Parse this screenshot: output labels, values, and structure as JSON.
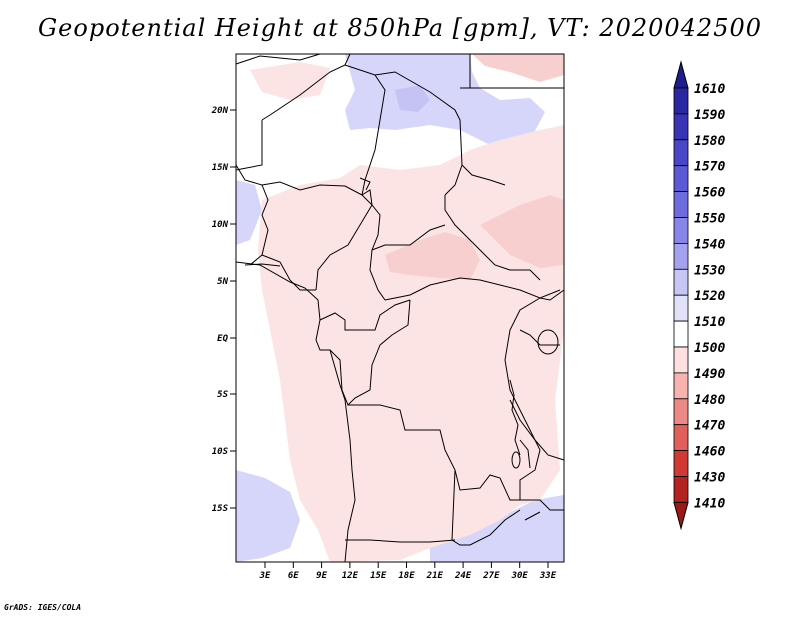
{
  "title": "Geopotential Height at 850hPa [gpm], VT: 2020042500",
  "credit": "GrADS: IGES/COLA",
  "lat_ticks": [
    "20N",
    "15N",
    "10N",
    "5N",
    "EQ",
    "5S",
    "10S",
    "15S"
  ],
  "lon_ticks": [
    "3E",
    "6E",
    "9E",
    "12E",
    "15E",
    "18E",
    "21E",
    "24E",
    "27E",
    "30E",
    "33E"
  ],
  "colorbar": {
    "labels": [
      "1610",
      "1590",
      "1580",
      "1570",
      "1560",
      "1550",
      "1540",
      "1530",
      "1520",
      "1510",
      "1500",
      "1490",
      "1480",
      "1470",
      "1460",
      "1430",
      "1410"
    ],
    "colors": [
      "#1f1c8f",
      "#2b27a3",
      "#3934b5",
      "#4a46c7",
      "#5c59d6",
      "#6f6ce0",
      "#8885e8",
      "#a4a2ee",
      "#c6c5f4",
      "#e2e1fa",
      "#ffffff",
      "#fde0df",
      "#f6b3b0",
      "#ee8a85",
      "#e2605b",
      "#d13a34",
      "#b3231f",
      "#9c1a16"
    ]
  },
  "colors": {
    "blue_anomaly": "#d6d6fa",
    "blue_deep": "#c4c3f3",
    "red_light": "#fde4e4",
    "red_mid": "#f8cfcf",
    "border": "#000000"
  }
}
